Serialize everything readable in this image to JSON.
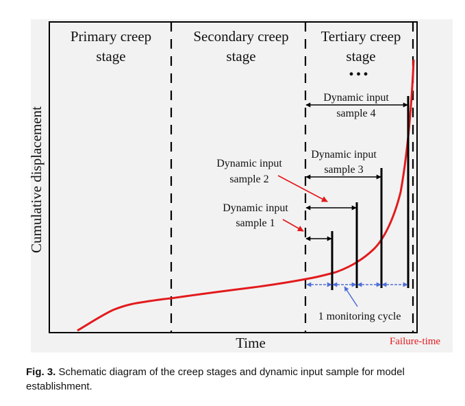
{
  "diagram": {
    "stages": {
      "primary": [
        "Primary creep",
        "stage"
      ],
      "secondary": [
        "Secondary creep",
        "stage"
      ],
      "tertiary": [
        "Tertiary creep",
        "stage"
      ],
      "ellipsis": "..."
    },
    "samples": {
      "s1": [
        "Dynamic input",
        "sample 1"
      ],
      "s2": [
        "Dynamic input",
        "sample 2"
      ],
      "s3": [
        "Dynamic input",
        "sample 3"
      ],
      "s4": [
        "Dynamic input",
        "sample 4"
      ]
    },
    "monitoring_cycle_label": "1 monitoring cycle",
    "y_axis_label": "Cumulative displacement",
    "x_axis_label": "Time",
    "failure_label": "Failure-time",
    "colors": {
      "curve": "#e31a1c",
      "cycle_arrows": "#4f6fd8",
      "sample_arrows": "#e31a1c",
      "failure": "#e31a1c"
    }
  },
  "caption": {
    "label": "Fig. 3.",
    "text": "Schematic diagram of the creep stages and dynamic input sample for model establishment."
  }
}
